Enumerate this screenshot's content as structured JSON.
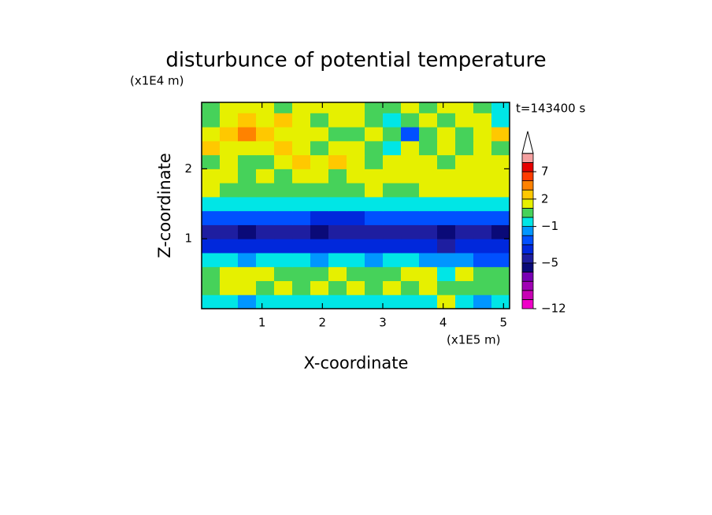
{
  "chart_data": {
    "type": "contour",
    "title": "disturbunce of potential temperature",
    "x_label": "X-coordinate",
    "y_label": "Z-coordinate",
    "x_unit": "(x1E5 m)",
    "y_unit": "(x1E4 m)",
    "time_label": "t=143400 s",
    "xlim": [
      0,
      5.1
    ],
    "ylim": [
      0,
      2.95
    ],
    "xticks": [
      1,
      2,
      3,
      4,
      5
    ],
    "yticks": [
      1,
      2
    ],
    "x_edges": [
      0,
      0.3,
      0.6,
      0.9,
      1.2,
      1.5,
      1.8,
      2.1,
      2.4,
      2.7,
      3.0,
      3.3,
      3.6,
      3.9,
      4.2,
      4.5,
      4.8,
      5.1
    ],
    "y_edges": [
      0,
      0.2,
      0.4,
      0.6,
      0.8,
      1.0,
      1.2,
      1.4,
      1.6,
      1.8,
      2.0,
      2.2,
      2.4,
      2.6,
      2.8,
      2.95
    ],
    "z": [
      [
        -0.5,
        -0.5,
        -1.5,
        -0.5,
        -0.5,
        -0.5,
        -0.5,
        -0.5,
        -0.5,
        -0.5,
        -0.5,
        -0.5,
        -0.5,
        1.5,
        -0.5,
        -1.5,
        -0.5
      ],
      [
        0.5,
        1.5,
        1.5,
        0.5,
        1.5,
        0.5,
        1.5,
        0.5,
        1.5,
        0.5,
        1.5,
        0.5,
        1.5,
        0.5,
        0.5,
        0.5,
        0.5
      ],
      [
        0.5,
        1.5,
        1.5,
        1.5,
        0.5,
        0.5,
        0.5,
        1.5,
        0.5,
        0.5,
        0.5,
        1.5,
        1.5,
        -0.5,
        1.5,
        0.5,
        0.5
      ],
      [
        -0.5,
        -0.5,
        -1.5,
        -0.5,
        -0.5,
        -0.5,
        -1.5,
        -0.5,
        -0.5,
        -1.5,
        -0.5,
        -0.5,
        -1.5,
        -1.5,
        -1.5,
        -2.5,
        -2.5
      ],
      [
        -3.5,
        -3.5,
        -3.5,
        -3.5,
        -3.5,
        -3.5,
        -3.5,
        -3.5,
        -3.5,
        -3.5,
        -3.5,
        -3.5,
        -3.5,
        -4.5,
        -3.5,
        -3.5,
        -3.5
      ],
      [
        -4.5,
        -4.5,
        -5.5,
        -4.5,
        -4.5,
        -4.5,
        -5.5,
        -4.5,
        -4.5,
        -4.5,
        -4.5,
        -4.5,
        -4.5,
        -5.5,
        -4.5,
        -4.5,
        -5.5
      ],
      [
        -2.5,
        -2.5,
        -2.5,
        -2.5,
        -2.5,
        -2.5,
        -3.5,
        -3.5,
        -3.5,
        -2.5,
        -2.5,
        -2.5,
        -2.5,
        -2.5,
        -2.5,
        -2.5,
        -2.5
      ],
      [
        -0.5,
        -0.5,
        -0.5,
        -0.5,
        -0.5,
        -0.5,
        -0.5,
        -0.5,
        -0.5,
        -0.5,
        -0.5,
        -0.5,
        -0.5,
        -0.5,
        -0.5,
        -0.5,
        -0.5
      ],
      [
        1.5,
        0.5,
        0.5,
        0.5,
        0.5,
        0.5,
        0.5,
        0.5,
        0.5,
        1.5,
        0.5,
        0.5,
        1.5,
        1.5,
        1.5,
        1.5,
        1.5
      ],
      [
        1.5,
        1.5,
        0.5,
        1.5,
        0.5,
        1.5,
        1.5,
        0.5,
        1.5,
        1.5,
        1.5,
        1.5,
        1.5,
        1.5,
        1.5,
        1.5,
        1.5
      ],
      [
        0.5,
        1.5,
        0.5,
        0.5,
        1.5,
        2.5,
        1.5,
        2.5,
        1.5,
        0.5,
        1.5,
        1.5,
        1.5,
        0.5,
        1.5,
        1.5,
        1.5
      ],
      [
        2.5,
        1.5,
        1.5,
        1.5,
        2.5,
        1.5,
        0.5,
        1.5,
        1.5,
        0.5,
        -0.5,
        1.5,
        0.5,
        1.5,
        0.5,
        1.5,
        0.5
      ],
      [
        1.5,
        2.5,
        4,
        2.5,
        1.5,
        1.5,
        1.5,
        0.5,
        0.5,
        1.5,
        0.5,
        -2.5,
        0.5,
        1.5,
        0.5,
        1.5,
        2.5
      ],
      [
        0.5,
        1.5,
        2.5,
        1.5,
        2.5,
        1.5,
        0.5,
        1.5,
        1.5,
        0.5,
        -0.5,
        0.5,
        1.5,
        0.5,
        1.5,
        1.5,
        -0.5
      ],
      [
        0.5,
        1.5,
        1.5,
        1.5,
        0.5,
        1.5,
        1.5,
        1.5,
        1.5,
        0.5,
        0.5,
        1.5,
        0.5,
        1.5,
        1.5,
        0.5,
        -0.5
      ]
    ],
    "levels": [
      -12,
      -10,
      -8,
      -7,
      -6,
      -5,
      -4,
      -3,
      -2,
      -1,
      0,
      1,
      2,
      3,
      5,
      7,
      9,
      11
    ],
    "colors": [
      "#f000c8",
      "#c800b4",
      "#a000b4",
      "#7800b4",
      "#0a0a78",
      "#1e1ea0",
      "#0028dc",
      "#0050ff",
      "#0096ff",
      "#00e6e6",
      "#46d25a",
      "#e6f000",
      "#ffc800",
      "#ff8200",
      "#ff3c00",
      "#e60000",
      "#f5a0a0"
    ],
    "colorbar_ticks": [
      {
        "value": -12,
        "label": "−12"
      },
      {
        "value": -5,
        "label": "−5"
      },
      {
        "value": -1,
        "label": "−1"
      },
      2,
      7
    ]
  }
}
